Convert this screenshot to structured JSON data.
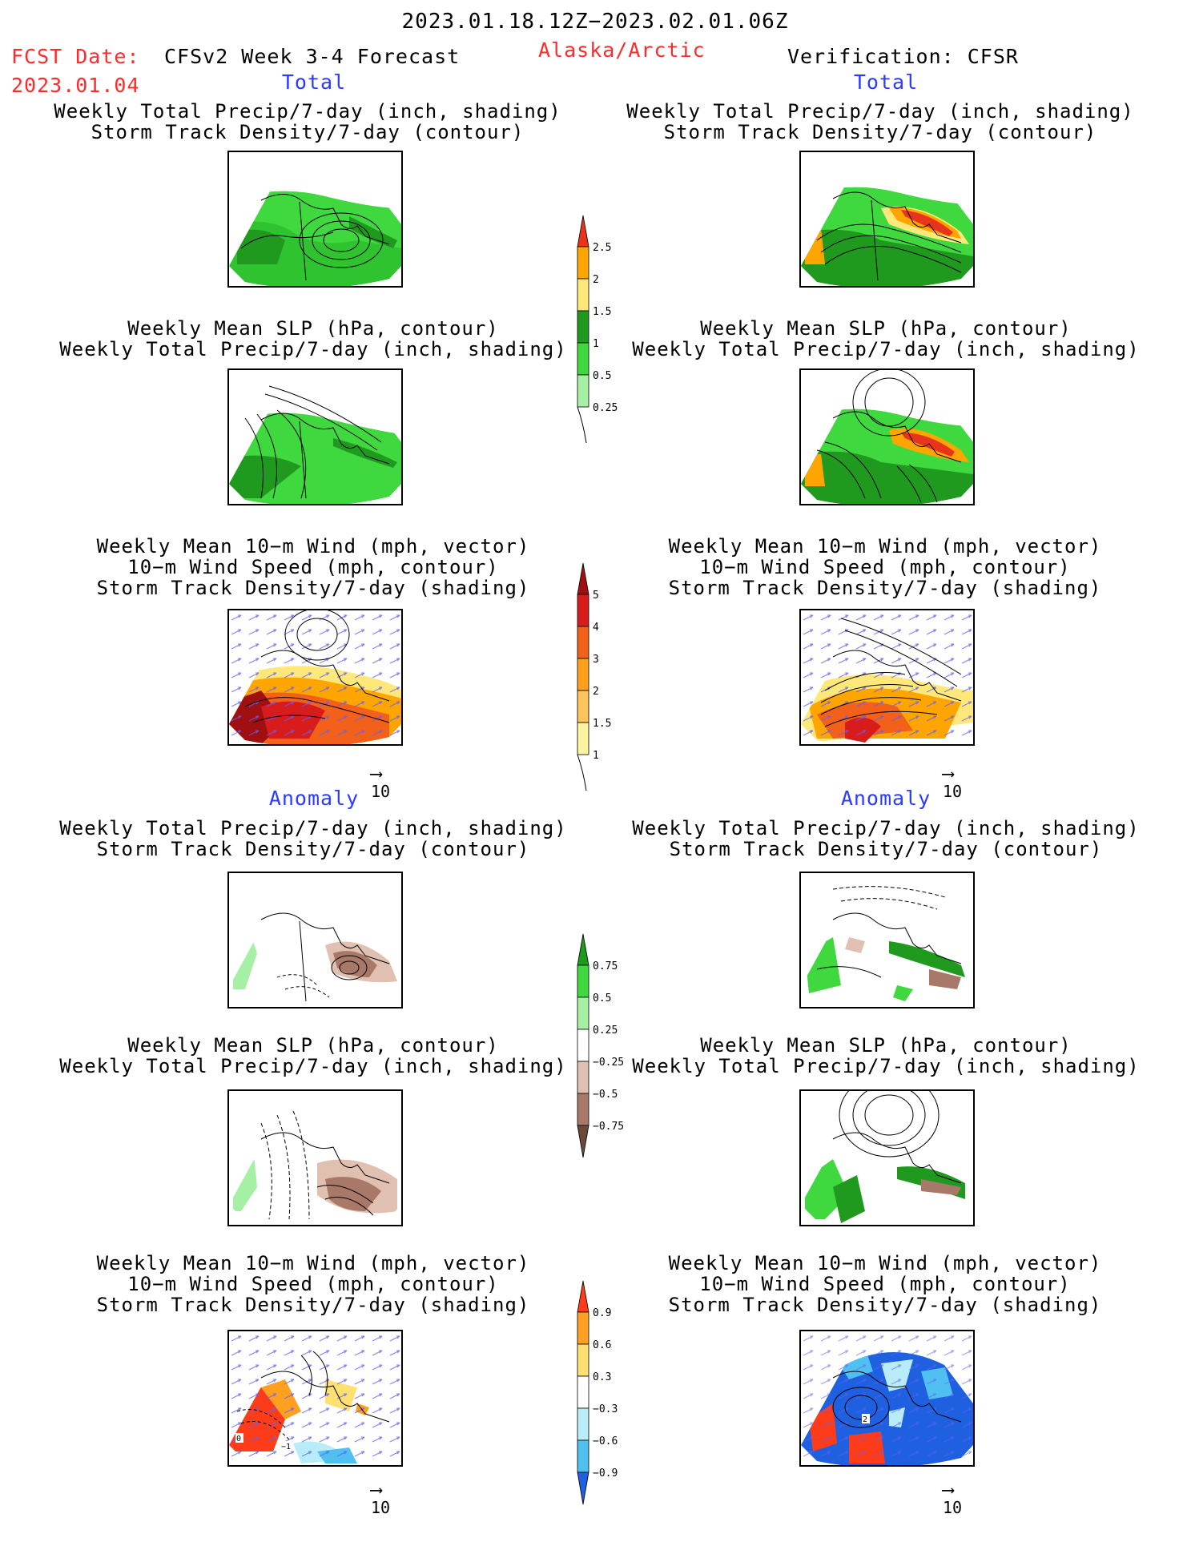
{
  "header": {
    "period": "2023.01.18.12Z−2023.02.01.06Z",
    "fcst_label": "FCST Date:",
    "fcst_date": "2023.01.04",
    "model": "CFSv2 Week 3-4 Forecast",
    "region": "Alaska/Arctic",
    "verification": "Verification: CFSR"
  },
  "sections": {
    "total": "Total",
    "anomaly": "Anomaly"
  },
  "titles": {
    "precip_storm": [
      "Weekly Total Precip/7-day (inch, shading)",
      "Storm Track Density/7-day (contour)"
    ],
    "slp_precip": [
      "Weekly Mean SLP (hPa, contour)",
      "Weekly Total Precip/7-day (inch, shading)"
    ],
    "wind_storm": [
      "Weekly Mean 10−m Wind (mph, vector)",
      "10−m Wind Speed (mph, contour)",
      "Storm Track Density/7-day (shading)"
    ]
  },
  "vector_key": "10",
  "colorbars": {
    "precip_total": {
      "labels": [
        "2.5",
        "2",
        "1.5",
        "1",
        "0.5",
        "0.25"
      ],
      "colors": [
        "#e8341c",
        "#ffa500",
        "#ffe87a",
        "#1f9a1f",
        "#3fd83f",
        "#a6f0a6"
      ]
    },
    "storm_total": {
      "labels": [
        "5",
        "4",
        "3",
        "2",
        "1.5",
        "1"
      ],
      "colors": [
        "#a01010",
        "#d81c1c",
        "#f2601a",
        "#ff9f1a",
        "#ffc45a",
        "#fff2a0"
      ]
    },
    "precip_anom": {
      "labels": [
        "0.75",
        "0.5",
        "0.25",
        "−0.25",
        "−0.5",
        "−0.75"
      ],
      "colors": [
        "#1f9a1f",
        "#3fd83f",
        "#a6f0a6",
        "#ffffff",
        "#e0c0b0",
        "#a87868",
        "#6b4a3a"
      ]
    },
    "storm_anom": {
      "labels": [
        "0.9",
        "0.6",
        "0.3",
        "−0.3",
        "−0.6",
        "−0.9"
      ],
      "colors": [
        "#ff3c1a",
        "#ffa020",
        "#ffe070",
        "#ffffff",
        "#b8ecf8",
        "#4fc0f0",
        "#1e60e0"
      ]
    }
  },
  "map_labels": {
    "anom_wind_fcst": [
      "0",
      "−1"
    ],
    "anom_wind_ver": [
      "2"
    ]
  }
}
